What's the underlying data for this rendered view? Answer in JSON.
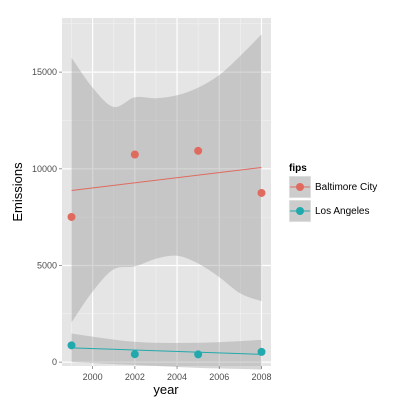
{
  "colors": {
    "panel_bg": "#e5e5e5",
    "grid_major": "#ffffff",
    "grid_minor": "#f2f2f2",
    "band_fill": "#999999",
    "baltimore": "#e06a5e",
    "los_angeles": "#22a9ad",
    "tick_text": "#4d4d4d"
  },
  "legend": {
    "title": "fips",
    "items": [
      {
        "label": "Baltimore City",
        "color_key": "baltimore"
      },
      {
        "label": "Los Angeles",
        "color_key": "los_angeles"
      }
    ]
  },
  "chart_data": {
    "type": "scatter",
    "xlabel": "year",
    "ylabel": "Emissions",
    "xlim": [
      1998.55,
      2008.45
    ],
    "ylim": [
      -200,
      17800
    ],
    "xticks": [
      2000,
      2002,
      2004,
      2006,
      2008
    ],
    "yticks": [
      0,
      5000,
      10000,
      15000
    ],
    "grid": true,
    "legend_position": "right",
    "smoothing": "linear fit with confidence band",
    "series": [
      {
        "name": "Baltimore City",
        "color": "#e06a5e",
        "x": [
          1999,
          2002,
          2005,
          2008
        ],
        "y": [
          7510,
          10740,
          10930,
          8750
        ],
        "fit": {
          "x": [
            1999,
            2008
          ],
          "y": [
            8880,
            10070
          ]
        },
        "band": {
          "x": [
            1999,
            2000,
            2001,
            2002,
            2003,
            2004,
            2005,
            2006,
            2007,
            2008
          ],
          "upper": [
            15750,
            14200,
            13200,
            13700,
            13650,
            13800,
            14200,
            14850,
            15850,
            16950
          ],
          "lower": [
            2050,
            3650,
            4800,
            4950,
            5350,
            5500,
            5100,
            4400,
            3550,
            3150
          ]
        }
      },
      {
        "name": "Los Angeles",
        "color": "#22a9ad",
        "x": [
          1999,
          2002,
          2005,
          2008
        ],
        "y": [
          870,
          410,
          400,
          530
        ],
        "fit": {
          "x": [
            1999,
            2008
          ],
          "y": [
            740,
            400
          ]
        },
        "band": {
          "x": [
            1999,
            2002,
            2005,
            2008
          ],
          "upper": [
            1480,
            1050,
            1000,
            1150
          ],
          "lower": [
            0,
            -150,
            -300,
            -380
          ]
        }
      }
    ]
  }
}
